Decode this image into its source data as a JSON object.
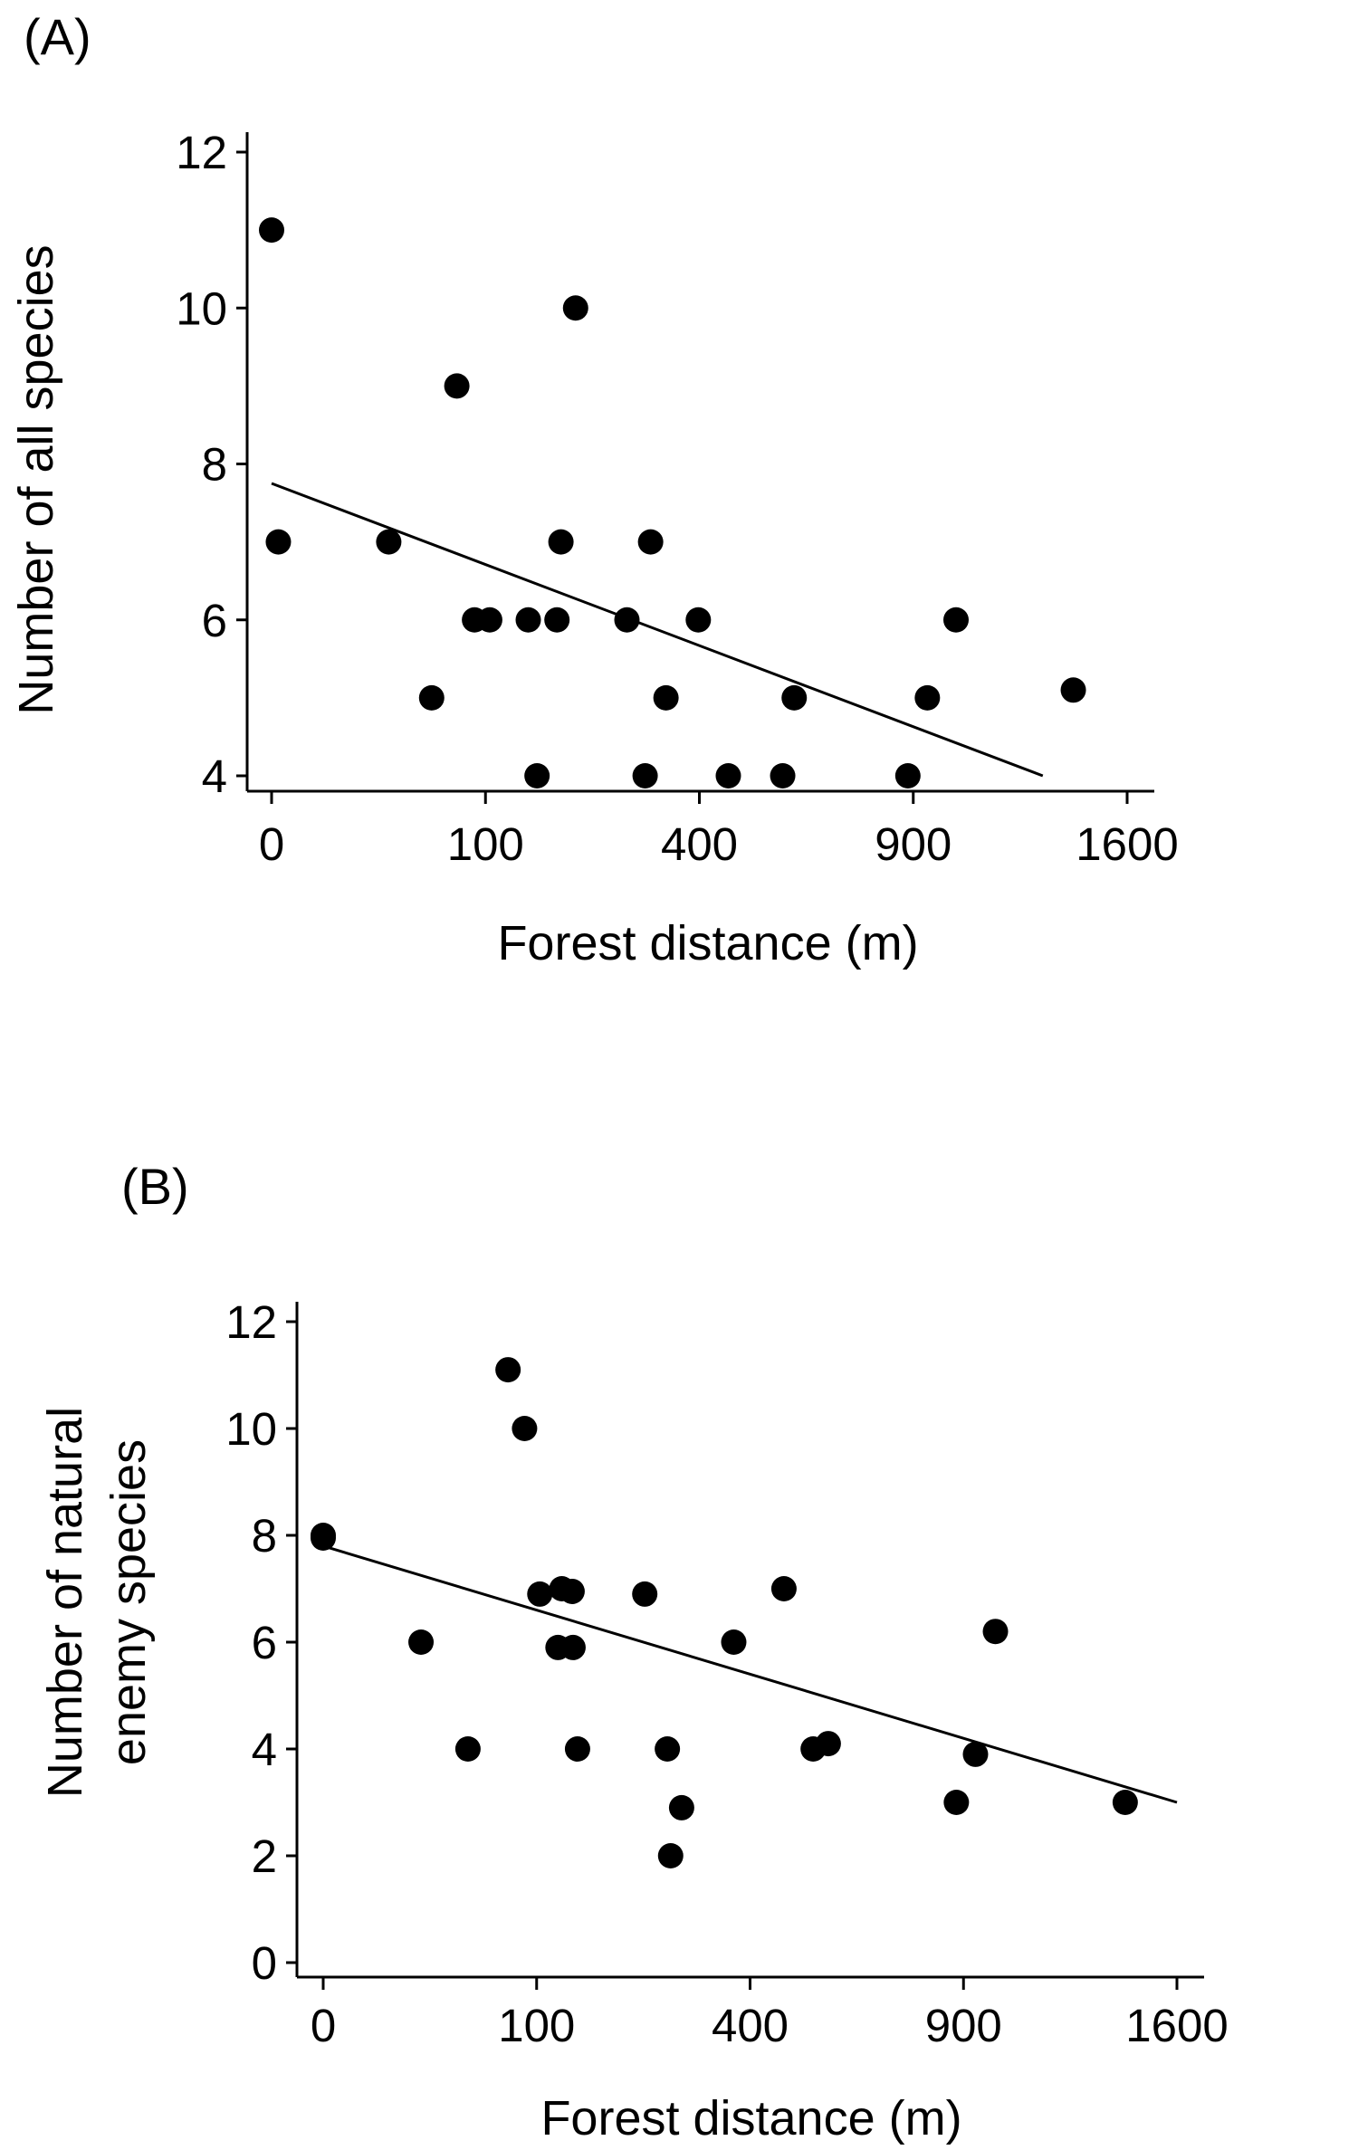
{
  "chart_data": [
    {
      "type": "scatter",
      "panel_label": "(A)",
      "xlabel": "Forest distance (m)",
      "ylabel": "Number of all species",
      "x_scale": "sqrt",
      "xlim": [
        0,
        1600
      ],
      "ylim": [
        4,
        12
      ],
      "x_ticks": [
        0,
        100,
        400,
        900,
        1600
      ],
      "y_ticks": [
        4,
        6,
        8,
        10,
        12
      ],
      "x_tick_labels": [
        "0",
        "100",
        "400",
        "900",
        "1600"
      ],
      "y_tick_labels": [
        "4",
        "6",
        "8",
        "10",
        "12"
      ],
      "grid": false,
      "points": [
        {
          "x": 0,
          "y": 11
        },
        {
          "x": 0.1,
          "y": 7
        },
        {
          "x": 30,
          "y": 7
        },
        {
          "x": 56,
          "y": 5
        },
        {
          "x": 75,
          "y": 9
        },
        {
          "x": 90,
          "y": 6
        },
        {
          "x": 104,
          "y": 6
        },
        {
          "x": 144,
          "y": 6
        },
        {
          "x": 154,
          "y": 4
        },
        {
          "x": 178,
          "y": 6
        },
        {
          "x": 183,
          "y": 7
        },
        {
          "x": 202,
          "y": 10
        },
        {
          "x": 276,
          "y": 6
        },
        {
          "x": 305,
          "y": 4
        },
        {
          "x": 314,
          "y": 7
        },
        {
          "x": 340,
          "y": 5
        },
        {
          "x": 398,
          "y": 6
        },
        {
          "x": 456,
          "y": 4
        },
        {
          "x": 571,
          "y": 4
        },
        {
          "x": 597,
          "y": 5
        },
        {
          "x": 885,
          "y": 4
        },
        {
          "x": 940,
          "y": 5
        },
        {
          "x": 1024,
          "y": 6
        },
        {
          "x": 1405,
          "y": 5.1
        }
      ],
      "fit_line": {
        "x": [
          0,
          1300
        ],
        "y": [
          7.75,
          4.0
        ]
      }
    },
    {
      "type": "scatter",
      "panel_label": "(B)",
      "xlabel": "Forest distance (m)",
      "ylabel": [
        "Number of natural",
        "enemy species"
      ],
      "x_scale": "sqrt",
      "xlim": [
        0,
        1600
      ],
      "ylim": [
        0,
        12
      ],
      "x_ticks": [
        0,
        100,
        400,
        900,
        1600
      ],
      "y_ticks": [
        0,
        2,
        4,
        6,
        8,
        10,
        12
      ],
      "x_tick_labels": [
        "0",
        "100",
        "400",
        "900",
        "1600"
      ],
      "y_tick_labels": [
        "0",
        "2",
        "4",
        "6",
        "8",
        "10",
        "12"
      ],
      "grid": false,
      "points": [
        {
          "x": 0,
          "y": 8
        },
        {
          "x": 0,
          "y": 7.95
        },
        {
          "x": 21,
          "y": 6
        },
        {
          "x": 46,
          "y": 4
        },
        {
          "x": 75,
          "y": 11.1
        },
        {
          "x": 89,
          "y": 10
        },
        {
          "x": 103,
          "y": 6.9
        },
        {
          "x": 121,
          "y": 5.9
        },
        {
          "x": 125,
          "y": 7
        },
        {
          "x": 136,
          "y": 6.95
        },
        {
          "x": 137,
          "y": 5.9
        },
        {
          "x": 142,
          "y": 4
        },
        {
          "x": 227,
          "y": 6.9
        },
        {
          "x": 260,
          "y": 4
        },
        {
          "x": 265,
          "y": 2
        },
        {
          "x": 282,
          "y": 2.9
        },
        {
          "x": 370,
          "y": 6
        },
        {
          "x": 466,
          "y": 7
        },
        {
          "x": 527,
          "y": 4
        },
        {
          "x": 560,
          "y": 4.1
        },
        {
          "x": 880,
          "y": 3
        },
        {
          "x": 934,
          "y": 3.9
        },
        {
          "x": 992,
          "y": 6.2
        },
        {
          "x": 1412,
          "y": 3
        }
      ],
      "fit_line": {
        "x": [
          0,
          1600
        ],
        "y": [
          7.8,
          3.0
        ]
      }
    }
  ]
}
